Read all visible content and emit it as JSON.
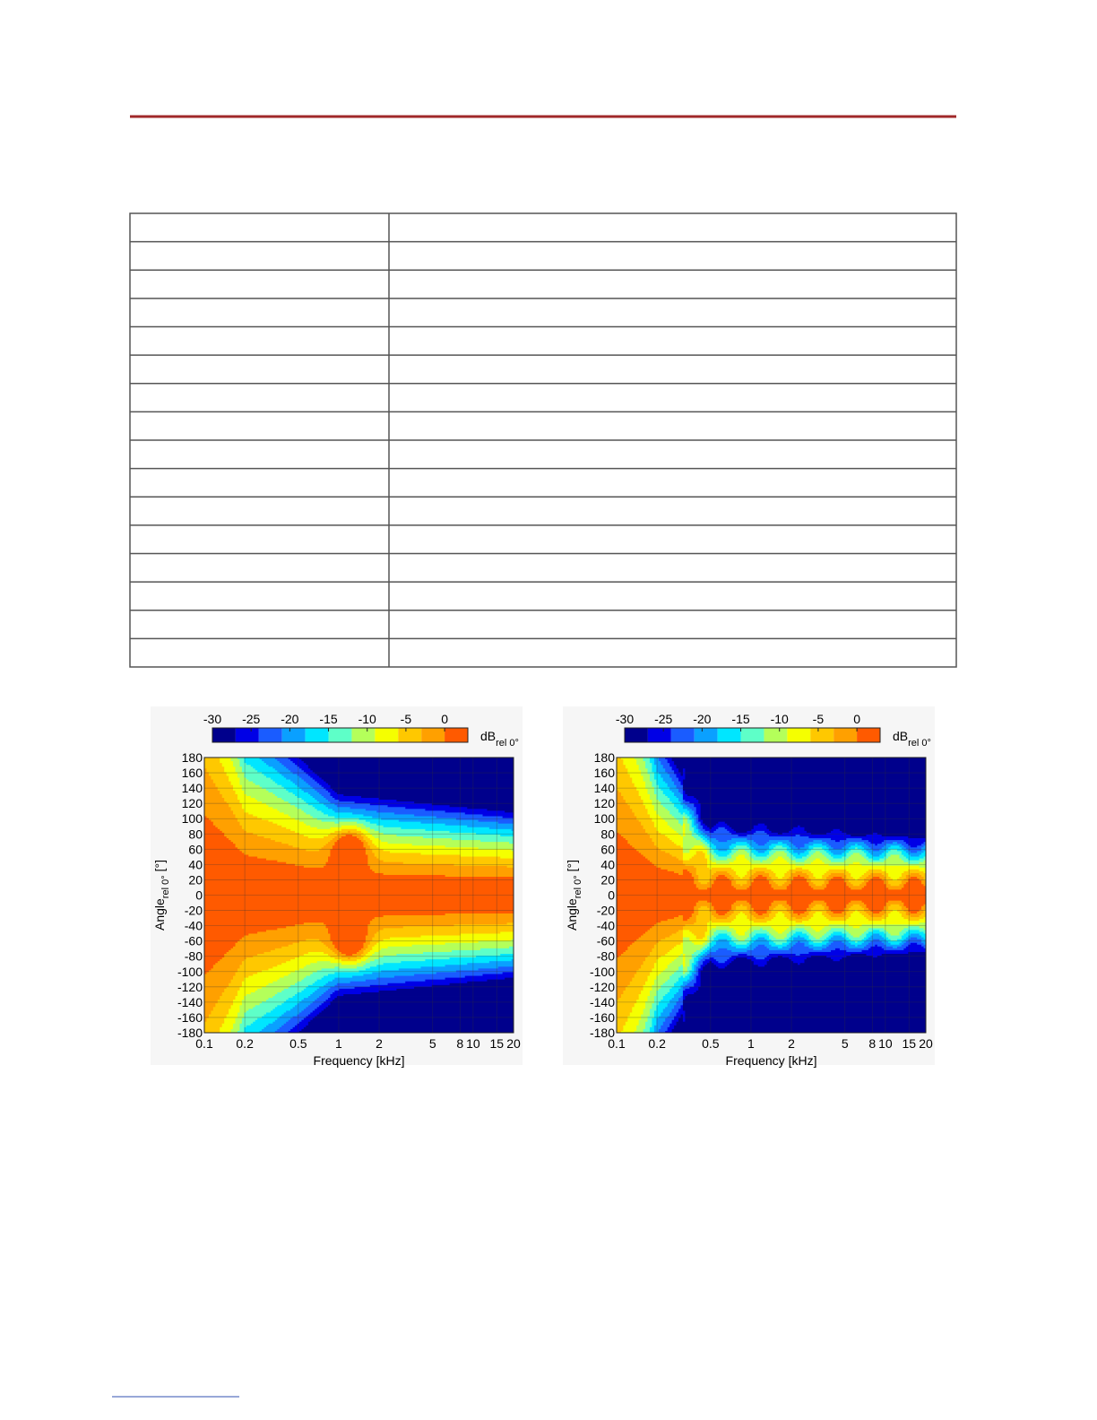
{
  "charts": [
    {
      "type": "contour",
      "colorbar": {
        "ticks": [
          -30,
          -25,
          -20,
          -15,
          -10,
          -5,
          0
        ],
        "clim": [
          -30,
          3
        ],
        "levels": [
          -30,
          -27,
          -24,
          -21,
          -18,
          -15,
          -12,
          -9,
          -6,
          -3,
          0,
          3
        ],
        "colors": [
          "#00008c",
          "#0000e6",
          "#1a5cff",
          "#0aa0ff",
          "#00e6ff",
          "#5effc8",
          "#b4ff5a",
          "#f5ff00",
          "#ffc800",
          "#ffa000",
          "#ff5a00"
        ],
        "label": "dB",
        "label_sub": "rel 0°"
      },
      "xlabel": "Frequency [kHz]",
      "ylabel": "Angle",
      "ylabel_sub": "rel 0°",
      "ylabel_unit": "[°]",
      "xscale": "log",
      "xlim": [
        0.1,
        20
      ],
      "xticks": [
        0.1,
        0.2,
        0.5,
        1,
        2,
        5,
        8,
        10,
        15,
        20
      ],
      "ylim": [
        -180,
        180
      ],
      "yticks": [
        -180,
        -160,
        -140,
        -120,
        -100,
        -80,
        -60,
        -40,
        -20,
        0,
        20,
        40,
        60,
        80,
        100,
        120,
        140,
        160,
        180
      ],
      "grid": true
    },
    {
      "type": "contour",
      "colorbar": {
        "ticks": [
          -30,
          -25,
          -20,
          -15,
          -10,
          -5,
          0
        ],
        "clim": [
          -30,
          3
        ],
        "levels": [
          -30,
          -27,
          -24,
          -21,
          -18,
          -15,
          -12,
          -9,
          -6,
          -3,
          0,
          3
        ],
        "colors": [
          "#00008c",
          "#0000e6",
          "#1a5cff",
          "#0aa0ff",
          "#00e6ff",
          "#5effc8",
          "#b4ff5a",
          "#f5ff00",
          "#ffc800",
          "#ffa000",
          "#ff5a00"
        ],
        "label": "dB",
        "label_sub": "rel 0°"
      },
      "xlabel": "Frequency [kHz]",
      "ylabel": "Angle",
      "ylabel_sub": "rel 0°",
      "ylabel_unit": "[°]",
      "xscale": "log",
      "xlim": [
        0.1,
        20
      ],
      "xticks": [
        0.1,
        0.2,
        0.5,
        1,
        2,
        5,
        8,
        10,
        15,
        20
      ],
      "ylim": [
        -180,
        180
      ],
      "yticks": [
        -180,
        -160,
        -140,
        -120,
        -100,
        -80,
        -60,
        -40,
        -20,
        0,
        20,
        40,
        60,
        80,
        100,
        120,
        140,
        160,
        180
      ],
      "grid": true
    }
  ]
}
